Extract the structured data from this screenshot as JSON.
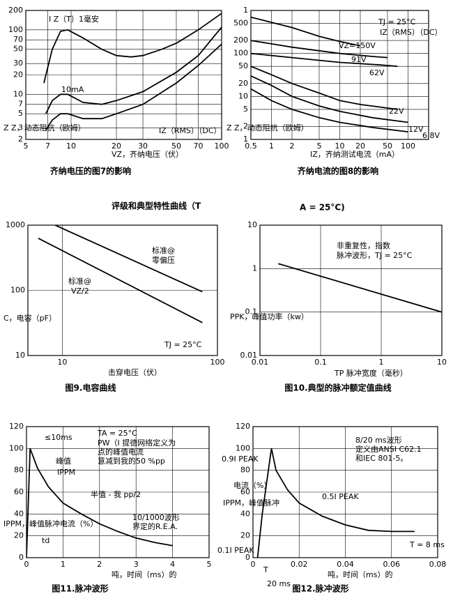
{
  "caption": [
    "评级和典型特性曲线（T",
    "A = 25°C)"
  ],
  "chart_data": [
    {
      "type": "line",
      "title": "齐纳电压的图7的影响",
      "xlabel": "VZ，齐纳电压（伏）",
      "ylabel": "Z Z，动态阻抗（欧姆）",
      "log_x": true,
      "log_y": true,
      "grid": true,
      "xlim": [
        5,
        100
      ],
      "ylim": [
        2,
        200
      ],
      "xticks": [
        5,
        7,
        10,
        20,
        30,
        50,
        70,
        100
      ],
      "yticks": [
        2,
        3,
        5,
        7,
        10,
        20,
        30,
        50,
        70,
        100,
        200
      ],
      "annotations": [
        "IZ（RMS）（DC）"
      ],
      "series": [
        {
          "name": "I Z（T）1毫安",
          "color": "#000000",
          "x": [
            6.6,
            7.5,
            8.5,
            9.5,
            12,
            16,
            20,
            25,
            30,
            40,
            50,
            70,
            100
          ],
          "values": [
            15,
            50,
            95,
            100,
            75,
            50,
            40,
            38,
            40,
            50,
            62,
            100,
            180
          ]
        },
        {
          "name": "10mA",
          "color": "#000000",
          "x": [
            6.8,
            7.5,
            8.5,
            9.5,
            12,
            16,
            20,
            30,
            50,
            70,
            100
          ],
          "values": [
            5,
            8,
            10,
            10,
            7.5,
            7,
            8,
            11,
            22,
            40,
            110
          ]
        },
        {
          "color": "#000000",
          "x": [
            6.8,
            7.5,
            8.5,
            9.5,
            12,
            16,
            20,
            30,
            50,
            70,
            100
          ],
          "values": [
            2.8,
            4,
            5,
            5,
            4.2,
            4.2,
            5,
            7,
            15,
            28,
            60
          ]
        }
      ]
    },
    {
      "type": "line",
      "title": "齐纳电流的图8的影响",
      "xlabel": "IZ，齐纳测试电流（mA）",
      "ylabel": "Z Z，动态阻抗（欧姆）",
      "log_x": true,
      "log_y": true,
      "grid": true,
      "xlim": [
        0.5,
        200
      ],
      "ylim": [
        1,
        1000
      ],
      "xticks": [
        0.5,
        1,
        2,
        5,
        10,
        20,
        50,
        100
      ],
      "yticks": [
        1,
        2,
        5,
        10,
        20,
        50,
        100,
        200,
        {
          "value": 500,
          "label": "500"
        },
        {
          "value": 1000,
          "label": "1"
        }
      ],
      "annotations": [
        "TJ = 25°C",
        "IZ（RMS）（DC）"
      ],
      "series": [
        {
          "name": "VZ=150V",
          "color": "#000000",
          "x": [
            0.5,
            2,
            5,
            10,
            20
          ],
          "values": [
            700,
            400,
            250,
            190,
            150
          ]
        },
        {
          "name": "91V",
          "color": "#000000",
          "x": [
            0.5,
            2,
            10,
            30,
            50
          ],
          "values": [
            200,
            140,
            100,
            85,
            80
          ]
        },
        {
          "name": "62V",
          "color": "#000000",
          "x": [
            0.5,
            2,
            10,
            40,
            70
          ],
          "values": [
            100,
            80,
            62,
            54,
            50
          ]
        },
        {
          "name": "22V",
          "color": "#000000",
          "x": [
            0.5,
            1,
            2,
            5,
            10,
            20,
            70
          ],
          "values": [
            50,
            32,
            20,
            12,
            8,
            6.5,
            5
          ]
        },
        {
          "name": "12V",
          "color": "#000000",
          "x": [
            0.5,
            1,
            2,
            5,
            10,
            30,
            100
          ],
          "values": [
            30,
            18,
            10,
            6,
            4.5,
            3.2,
            2.5
          ]
        },
        {
          "name": "6.8V",
          "color": "#000000",
          "x": [
            0.5,
            1,
            2,
            5,
            10,
            30,
            100
          ],
          "values": [
            15,
            8,
            5,
            3.2,
            2.5,
            1.9,
            1.5
          ]
        }
      ]
    },
    {
      "type": "line",
      "title": "图9.电容曲线",
      "xlabel": "击穿电压（伏）",
      "ylabel": "C，电容（pF）",
      "log_x": true,
      "log_y": true,
      "grid": true,
      "xlim": [
        6,
        100
      ],
      "ylim": [
        10,
        1000
      ],
      "xticks": [
        10,
        100
      ],
      "yticks": [
        10,
        100,
        1000
      ],
      "annotations": [
        "标准@",
        "零偏压",
        "标准@",
        "VZ/2",
        "TJ = 25°C"
      ],
      "series": [
        {
          "color": "#000000",
          "x": [
            9,
            80
          ],
          "values": [
            1000,
            95
          ]
        },
        {
          "color": "#000000",
          "x": [
            7,
            80
          ],
          "values": [
            630,
            32
          ]
        }
      ]
    },
    {
      "type": "line",
      "title": "图10.典型的脉冲额定值曲线",
      "xlabel": "TP 脉冲宽度（毫秒）",
      "ylabel": "PPK，峰值功率（kw）",
      "log_x": true,
      "log_y": true,
      "grid": true,
      "xlim": [
        0.01,
        10
      ],
      "ylim": [
        0.01,
        10
      ],
      "xticks": [
        0.01,
        0.1,
        1,
        10
      ],
      "yticks": [
        0.01,
        0.1,
        1,
        10
      ],
      "annotations": [
        "非重复性，指数",
        "脉冲波形，TJ = 25°C"
      ],
      "series": [
        {
          "color": "#000000",
          "x": [
            0.02,
            10
          ],
          "values": [
            1.3,
            0.1
          ]
        }
      ]
    },
    {
      "type": "line",
      "title": "图11.脉冲波形",
      "xlabel": "吨，时间（ms）的",
      "ylabel": "IPPM，峰值脉冲电流（%）",
      "log_x": false,
      "log_y": false,
      "grid": true,
      "xlim": [
        0,
        5
      ],
      "ylim": [
        0,
        120
      ],
      "xticks": [
        0,
        1,
        2,
        3,
        4,
        5
      ],
      "yticks": [
        0,
        20,
        40,
        60,
        80,
        100,
        120
      ],
      "annotations": [
        "≤10ms",
        "TA = 25°C",
        "PW（I 提德网络定义为",
        "点的峰值电流",
        "意减到我的50 %pp",
        "峰值",
        "IPPM",
        "半值 - 我 pp/2",
        "10/1000波形",
        "界定的R.E.A.",
        "td"
      ],
      "series": [
        {
          "color": "#000000",
          "x": [
            0,
            0.1,
            0.3,
            0.6,
            1,
            1.5,
            2,
            2.5,
            3,
            3.5,
            4
          ],
          "values": [
            0,
            100,
            82,
            65,
            50,
            40,
            31,
            24,
            18,
            14,
            11
          ]
        }
      ]
    },
    {
      "type": "line",
      "title": "图12.脉冲波形",
      "xlabel": "吨，时间（ms）的",
      "ylabel": "电流（%）",
      "log_x": false,
      "log_y": false,
      "grid": true,
      "xlim": [
        0,
        0.08
      ],
      "ylim": [
        0,
        120
      ],
      "xticks": [
        0,
        0.02,
        0.04,
        0.06,
        0.08
      ],
      "yticks": [
        0,
        20,
        40,
        60,
        80,
        100,
        120
      ],
      "annotations": [
        "8/20 ms波形",
        "定义由ANSI C62.1",
        "和IEC 801-5。",
        "0.9I PEAK",
        "0.5I PEAK",
        "0.1I PEAK",
        "IPPM，峰值脉冲",
        "T = 8 ms",
        "T",
        "20 ms"
      ],
      "series": [
        {
          "color": "#000000",
          "x": [
            0.002,
            0.004,
            0.008,
            0.01,
            0.015,
            0.02,
            0.03,
            0.04,
            0.05,
            0.06,
            0.07
          ],
          "values": [
            0,
            40,
            100,
            80,
            62,
            50,
            38,
            30,
            25,
            24,
            24
          ]
        }
      ]
    }
  ]
}
